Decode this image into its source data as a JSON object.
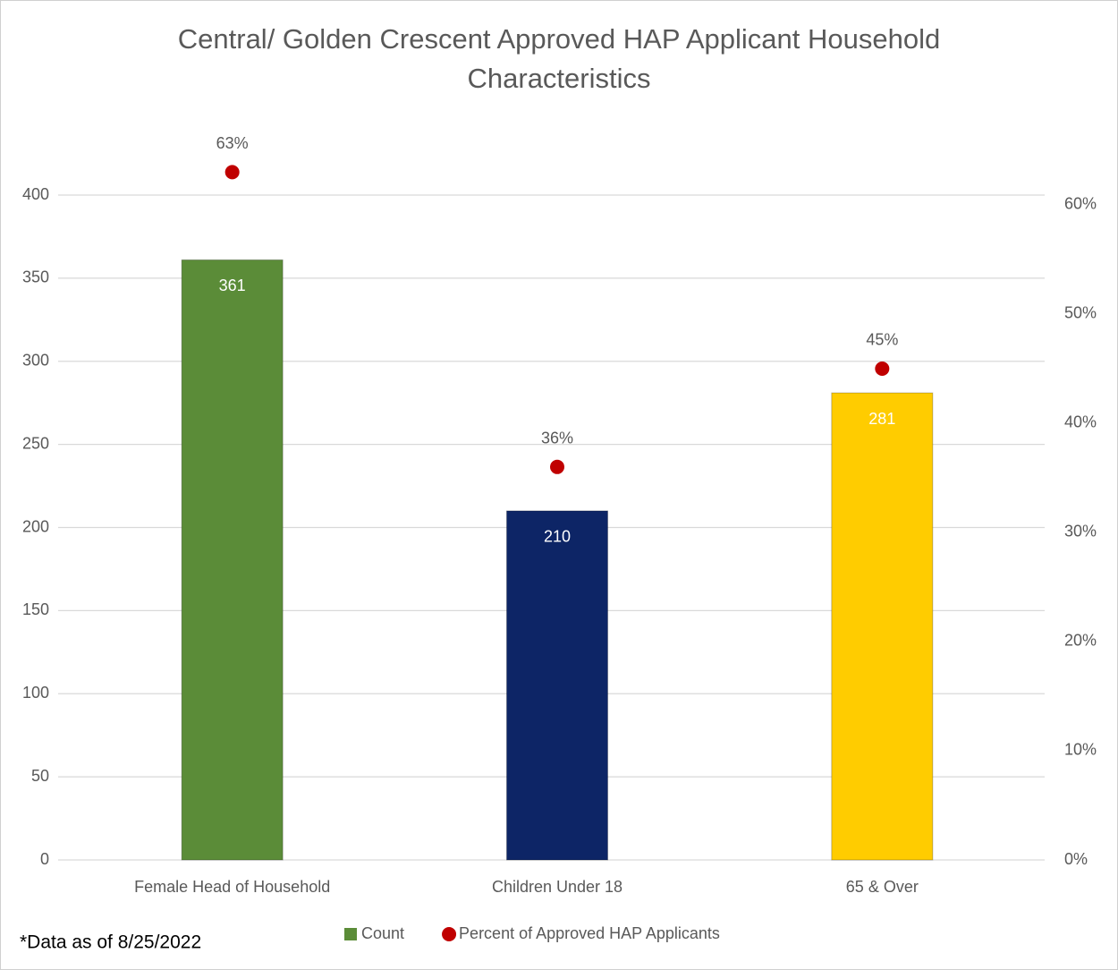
{
  "chart_data": {
    "type": "bar",
    "title": "Central/ Golden Crescent Approved HAP Applicant Household Characteristics",
    "annotation": "*Data as of 8/25/2022",
    "categories": [
      "Female Head of Household",
      "Children Under 18",
      "65 & Over"
    ],
    "series": [
      {
        "name": "Count",
        "type": "bar",
        "colors": [
          "#5b8c38",
          "#0d2566",
          "#ffcc00"
        ],
        "legend_color": "#5b8c38",
        "values": [
          361,
          210,
          281
        ]
      },
      {
        "name": "Percent of Approved HAP Applicants",
        "type": "scatter",
        "axis": "y2",
        "color": "#c00000",
        "values": [
          63,
          36,
          45
        ],
        "value_labels": [
          "63%",
          "36%",
          "45%"
        ]
      }
    ],
    "ylim": [
      0,
      400
    ],
    "yticks": [
      0,
      50,
      100,
      150,
      200,
      250,
      300,
      350,
      400
    ],
    "y2lim": [
      0,
      60.9
    ],
    "y2ticks": [
      {
        "value": 0,
        "label": "0%"
      },
      {
        "value": 10,
        "label": "10%"
      },
      {
        "value": 20,
        "label": "20%"
      },
      {
        "value": 30,
        "label": "30%"
      },
      {
        "value": 40,
        "label": "40%"
      },
      {
        "value": 50,
        "label": "50%"
      },
      {
        "value": 60,
        "label": "60%"
      }
    ],
    "grid": true
  }
}
